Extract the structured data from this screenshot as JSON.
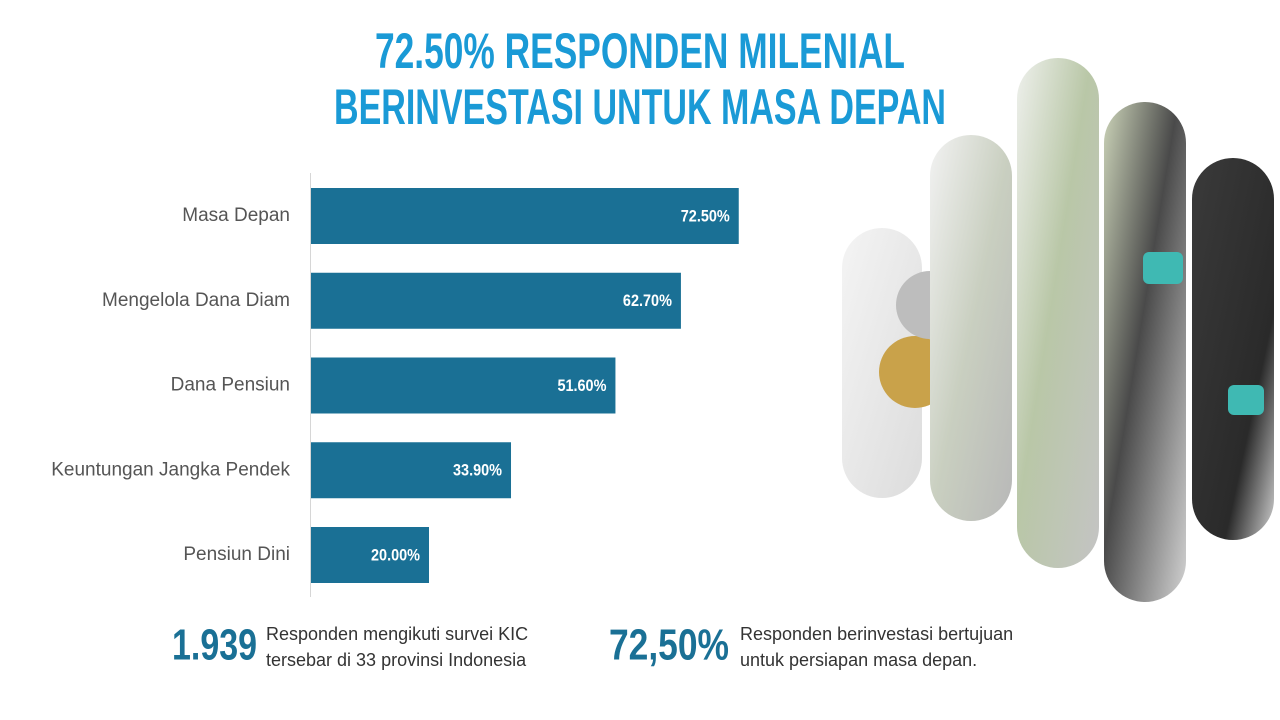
{
  "chart_data": {
    "type": "bar",
    "orientation": "horizontal",
    "title": [
      "72.50% RESPONDEN MILENIAL",
      "BERINVESTASI UNTUK MASA DEPAN"
    ],
    "categories": [
      "Masa Depan",
      "Mengelola Dana Diam",
      "Dana Pensiun",
      "Keuntungan Jangka Pendek",
      "Pensiun Dini"
    ],
    "values": [
      72.5,
      62.7,
      51.6,
      33.9,
      20.0
    ],
    "value_labels": [
      "72.50%",
      "62.70%",
      "51.60%",
      "33.90%",
      "20.00%"
    ],
    "color": "#1a7095",
    "xlim": [
      0,
      100
    ]
  },
  "stats": [
    {
      "value": "1.939",
      "lines": [
        "Responden mengikuti survei KIC",
        "tersebar di 33 provinsi Indonesia"
      ]
    },
    {
      "value": "72,50%",
      "lines": [
        "Responden berinvestasi bertujuan",
        "untuk persiapan masa depan."
      ]
    }
  ]
}
